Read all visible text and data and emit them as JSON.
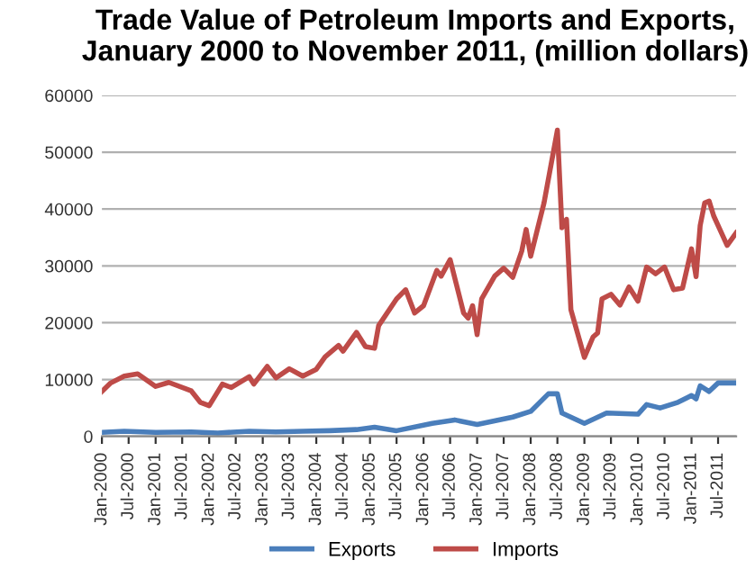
{
  "chart_data": {
    "type": "line",
    "title": "Trade Value of Petroleum Imports and Exports, January 2000 to November 2011, (million dollars)",
    "ylim": [
      0,
      60000
    ],
    "yticks": [
      0,
      10000,
      20000,
      30000,
      40000,
      50000,
      60000
    ],
    "xlim": [
      "2000-01",
      "2011-11"
    ],
    "xticks": [
      {
        "value": "2000-01",
        "label": "Jan-2000"
      },
      {
        "value": "2000-07",
        "label": "Jul-2000"
      },
      {
        "value": "2001-01",
        "label": "Jan-2001"
      },
      {
        "value": "2001-07",
        "label": "Jul-2001"
      },
      {
        "value": "2002-01",
        "label": "Jan-2002"
      },
      {
        "value": "2002-07",
        "label": "Jul-2002"
      },
      {
        "value": "2003-01",
        "label": "Jan-2003"
      },
      {
        "value": "2003-07",
        "label": "Jul-2003"
      },
      {
        "value": "2004-01",
        "label": "Jan-2004"
      },
      {
        "value": "2004-07",
        "label": "Jul-2004"
      },
      {
        "value": "2005-01",
        "label": "Jan-2005"
      },
      {
        "value": "2005-07",
        "label": "Jul-2005"
      },
      {
        "value": "2006-01",
        "label": "Jan-2006"
      },
      {
        "value": "2006-07",
        "label": "Jul-2006"
      },
      {
        "value": "2007-01",
        "label": "Jan-2007"
      },
      {
        "value": "2007-07",
        "label": "Jul-2007"
      },
      {
        "value": "2008-01",
        "label": "Jan-2008"
      },
      {
        "value": "2008-07",
        "label": "Jul-2008"
      },
      {
        "value": "2009-01",
        "label": "Jan-2009"
      },
      {
        "value": "2009-07",
        "label": "Jul-2009"
      },
      {
        "value": "2010-01",
        "label": "Jan-2010"
      },
      {
        "value": "2010-07",
        "label": "Jul-2010"
      },
      {
        "value": "2011-01",
        "label": "Jan-2011"
      },
      {
        "value": "2011-07",
        "label": "Jul-2011"
      }
    ],
    "grid": "y",
    "legend": "bottom",
    "marker": "none",
    "line_style": "solid",
    "series": [
      {
        "name": "Exports",
        "color": "#4a7ebb",
        "x": [
          "2000-01",
          "2000-06",
          "2001-01",
          "2001-09",
          "2002-03",
          "2002-10",
          "2003-04",
          "2003-10",
          "2004-04",
          "2004-10",
          "2005-02",
          "2005-07",
          "2006-03",
          "2006-08",
          "2007-01",
          "2007-09",
          "2008-01",
          "2008-05",
          "2008-07",
          "2008-08",
          "2009-01",
          "2009-06",
          "2010-01",
          "2010-03",
          "2010-06",
          "2010-10",
          "2011-01",
          "2011-02",
          "2011-03",
          "2011-05",
          "2011-07",
          "2011-11"
        ],
        "values": [
          700,
          900,
          700,
          800,
          600,
          900,
          800,
          900,
          1000,
          1200,
          1600,
          1000,
          2300,
          2900,
          2100,
          3400,
          4400,
          7500,
          7500,
          4100,
          2300,
          4100,
          3900,
          5600,
          5000,
          6000,
          7200,
          6600,
          8900,
          7900,
          9400,
          9400
        ]
      },
      {
        "name": "Imports",
        "color": "#be4b48",
        "x": [
          "2000-01",
          "2000-03",
          "2000-06",
          "2000-09",
          "2001-01",
          "2001-04",
          "2001-09",
          "2001-11",
          "2002-01",
          "2002-04",
          "2002-06",
          "2002-10",
          "2002-11",
          "2003-02",
          "2003-04",
          "2003-07",
          "2003-10",
          "2004-01",
          "2004-03",
          "2004-06",
          "2004-07",
          "2004-10",
          "2004-12",
          "2005-02",
          "2005-03",
          "2005-07",
          "2005-09",
          "2005-11",
          "2006-01",
          "2006-04",
          "2006-05",
          "2006-07",
          "2006-10",
          "2006-11",
          "2006-12",
          "2007-01",
          "2007-02",
          "2007-05",
          "2007-07",
          "2007-09",
          "2007-11",
          "2007-12",
          "2008-01",
          "2008-04",
          "2008-07",
          "2008-08",
          "2008-09",
          "2008-10",
          "2009-01",
          "2009-03",
          "2009-04",
          "2009-05",
          "2009-07",
          "2009-09",
          "2009-11",
          "2010-01",
          "2010-03",
          "2010-05",
          "2010-07",
          "2010-09",
          "2010-11",
          "2011-01",
          "2011-02",
          "2011-03",
          "2011-04",
          "2011-05",
          "2011-06",
          "2011-09",
          "2011-11"
        ],
        "values": [
          7900,
          9400,
          10600,
          11000,
          8800,
          9500,
          8000,
          6000,
          5400,
          9200,
          8600,
          10500,
          9200,
          12300,
          10300,
          11900,
          10600,
          11800,
          14000,
          16000,
          15000,
          18300,
          15800,
          15500,
          19500,
          24200,
          25800,
          21700,
          23000,
          29200,
          28200,
          31100,
          21700,
          20800,
          23000,
          17900,
          24200,
          28200,
          29600,
          28000,
          32600,
          36400,
          31700,
          41100,
          53900,
          36700,
          38200,
          22300,
          13900,
          17500,
          18200,
          24200,
          25000,
          23100,
          26300,
          23800,
          29800,
          28600,
          29800,
          25800,
          26100,
          33000,
          28100,
          37100,
          41100,
          41400,
          38800,
          33600,
          35800
        ]
      }
    ]
  }
}
